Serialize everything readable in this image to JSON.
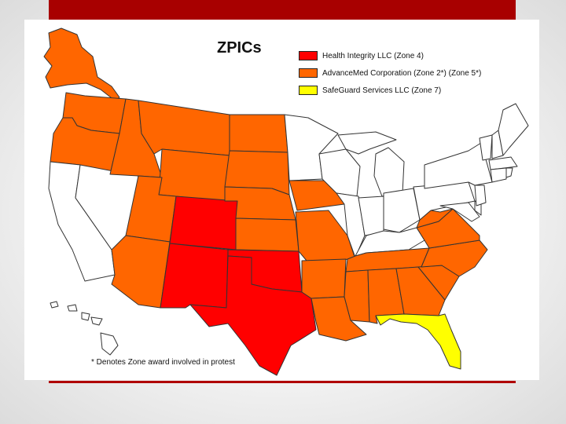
{
  "title": "ZPICs",
  "colors": {
    "zone4": "#ff0000",
    "advancemed": "#ff6600",
    "safeguard": "#ffff00",
    "unassigned": "#ffffff",
    "border": "#333333",
    "header_bar": "#a80000"
  },
  "legend": [
    {
      "label": "Health Integrity LLC (Zone 4)",
      "color": "#ff0000"
    },
    {
      "label": "AdvanceMed Corporation (Zone 2*) (Zone 5*)",
      "color": "#ff6600"
    },
    {
      "label": "SafeGuard Services LLC (Zone 7)",
      "color": "#ffff00"
    }
  ],
  "footnote": "* Denotes Zone award involved in protest"
}
